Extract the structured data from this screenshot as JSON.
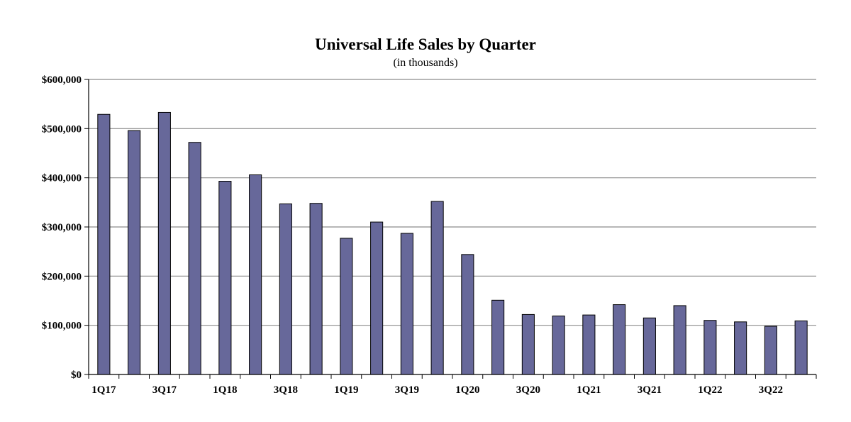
{
  "chart_data": {
    "type": "bar",
    "title": "Universal Life Sales by Quarter",
    "subtitle": "(in thousands)",
    "xlabel": "",
    "ylabel": "",
    "ylim": [
      0,
      600000
    ],
    "yticks": [
      0,
      100000,
      200000,
      300000,
      400000,
      500000,
      600000
    ],
    "ytick_labels": [
      "$0",
      "$100,000",
      "$200,000",
      "$300,000",
      "$400,000",
      "$500,000",
      "$600,000"
    ],
    "categories": [
      "1Q17",
      "2Q17",
      "3Q17",
      "4Q17",
      "1Q18",
      "2Q18",
      "3Q18",
      "4Q18",
      "1Q19",
      "2Q19",
      "3Q19",
      "4Q19",
      "1Q20",
      "2Q20",
      "3Q20",
      "4Q20",
      "1Q21",
      "2Q21",
      "3Q21",
      "4Q21",
      "1Q22",
      "2Q22",
      "3Q22",
      "4Q22"
    ],
    "xtick_labels_shown": [
      "1Q17",
      "",
      "3Q17",
      "",
      "1Q18",
      "",
      "3Q18",
      "",
      "1Q19",
      "",
      "3Q19",
      "",
      "1Q20",
      "",
      "3Q20",
      "",
      "1Q21",
      "",
      "3Q21",
      "",
      "1Q22",
      "",
      "3Q22",
      ""
    ],
    "values": [
      529000,
      496000,
      533000,
      472000,
      393000,
      406000,
      347000,
      348000,
      277000,
      310000,
      287000,
      352000,
      244000,
      151000,
      122000,
      119000,
      121000,
      142000,
      115000,
      140000,
      110000,
      107000,
      98000,
      109000
    ],
    "grid": true,
    "bar_color": "#67689a",
    "bar_edge_color": "#000000",
    "legend": "none"
  }
}
